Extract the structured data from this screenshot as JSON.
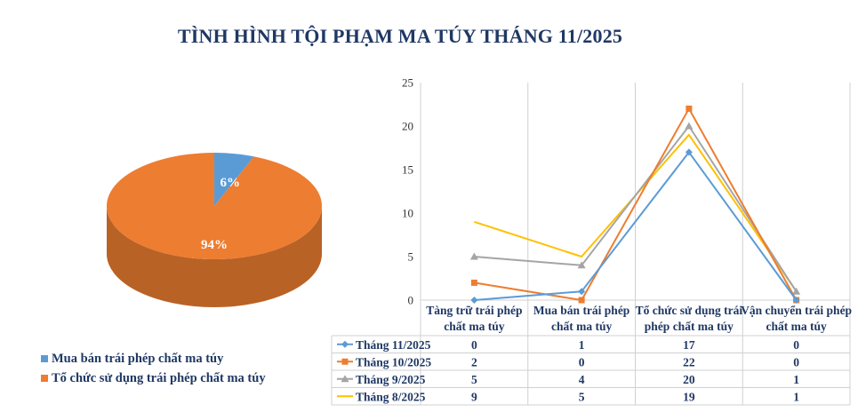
{
  "title": "TÌNH HÌNH TỘI PHẠM MA TÚY THÁNG 11/2025",
  "colors": {
    "title": "#1f3864",
    "blue": "#5b9bd5",
    "orange": "#ed7d31",
    "gray": "#a5a5a5",
    "yellow": "#ffc000"
  },
  "chart_data": [
    {
      "type": "pie",
      "title": "",
      "slices": [
        {
          "name": "Mua bán trái phép chất ma túy",
          "value": 6,
          "label": "6%",
          "color": "#5b9bd5"
        },
        {
          "name": "Tổ chức sử dụng trái phép chất ma túy",
          "value": 94,
          "label": "94%",
          "color": "#ed7d31"
        }
      ],
      "legend_position": "bottom-left",
      "style": "3d"
    },
    {
      "type": "line",
      "title": "",
      "categories": [
        [
          "Tàng trữ trái phép",
          "chất ma túy"
        ],
        [
          "Mua bán trái phép",
          "chất ma túy"
        ],
        [
          "Tổ chức sử dụng trái",
          "phép chất ma túy"
        ],
        [
          "Vận chuyển trái phép",
          "chất ma túy"
        ]
      ],
      "series": [
        {
          "name": "Tháng 11/2025",
          "values": [
            0,
            1,
            17,
            0
          ],
          "color": "#5b9bd5",
          "marker": "diamond"
        },
        {
          "name": "Tháng 10/2025",
          "values": [
            2,
            0,
            22,
            0
          ],
          "color": "#ed7d31",
          "marker": "square"
        },
        {
          "name": "Tháng 9/2025",
          "values": [
            5,
            4,
            20,
            1
          ],
          "color": "#a5a5a5",
          "marker": "triangle"
        },
        {
          "name": "Tháng 8/2025",
          "values": [
            9,
            5,
            19,
            1
          ],
          "color": "#ffc000",
          "marker": "none"
        }
      ],
      "ylim": [
        0,
        25
      ],
      "yticks": [
        0,
        5,
        10,
        15,
        20,
        25
      ],
      "grid": "vertical-category-lines",
      "data_table": true
    }
  ]
}
